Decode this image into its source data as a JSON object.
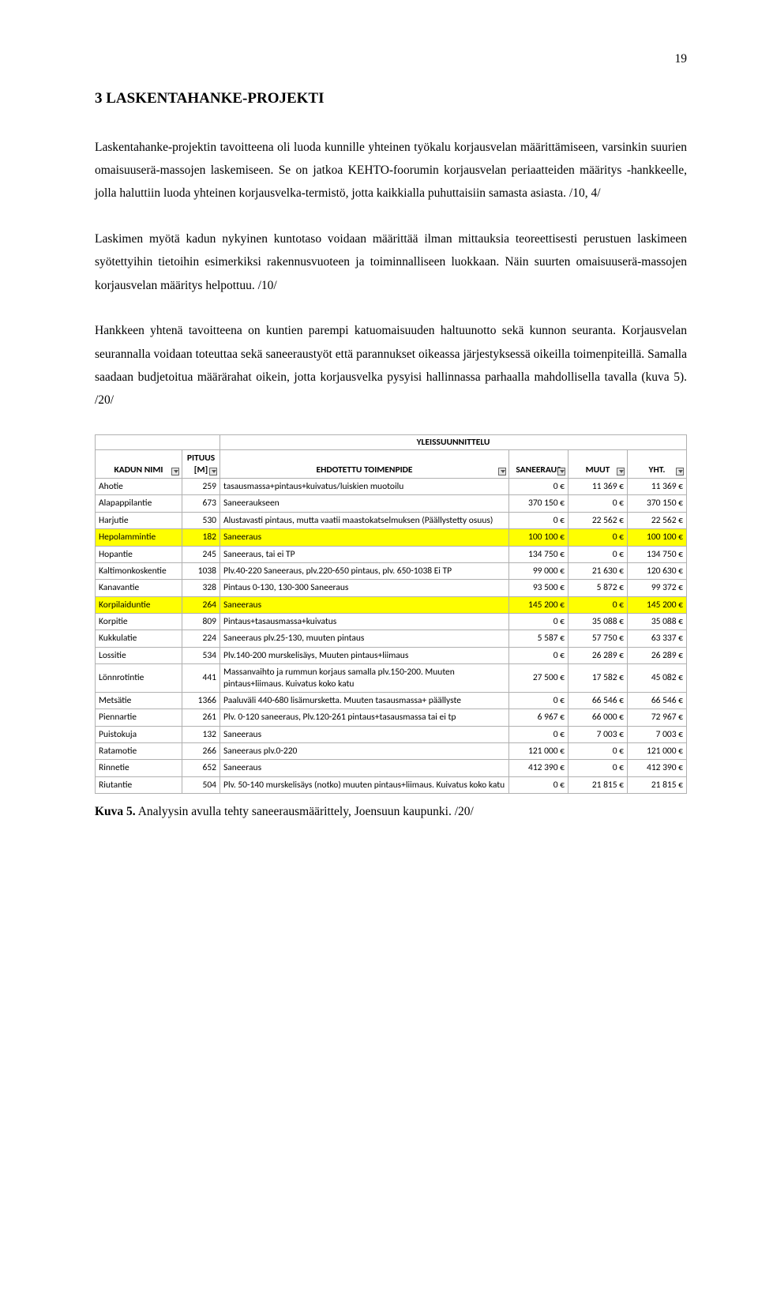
{
  "pageNumber": "19",
  "heading": "3   LASKENTAHANKE-PROJEKTI",
  "paragraphs": [
    "Laskentahanke-projektin tavoitteena oli luoda kunnille yhteinen työkalu korjausvelan määrittämiseen, varsinkin suurien omaisuuserä-massojen laskemiseen. Se on jatkoa KEHTO-foorumin korjausvelan periaatteiden määritys -hankkeelle, jolla haluttiin luoda yhteinen korjausvelka-termistö, jotta kaikkialla puhuttaisiin samasta asiasta. /10, 4/",
    "Laskimen myötä kadun nykyinen kuntotaso voidaan määrittää ilman mittauksia teoreettisesti perustuen laskimeen syötettyihin tietoihin esimerkiksi rakennusvuoteen ja toiminnalliseen luokkaan. Näin suurten omaisuuserä-massojen korjausvelan määritys helpottuu. /10/",
    "Hankkeen yhtenä tavoitteena on kuntien parempi katuomaisuuden haltuunotto sekä kunnon seuranta. Korjausvelan seurannalla voidaan toteuttaa sekä saneeraustyöt että parannukset oikeassa järjestyksessä oikeilla toimenpiteillä. Samalla saadaan budjetoitua määrärahat oikein, jotta korjausvelka pysyisi hallinnassa parhaalla mahdollisella tavalla (kuva 5).  /20/"
  ],
  "table": {
    "superHeaderRight": "YLEISSUUNNITTELU",
    "headers": {
      "name": "KADUN NIMI",
      "lengthLabel": "PITUUS",
      "lengthUnit": "[M]",
      "action": "EHDOTETTU TOIMENPIDE",
      "san": "SANEERAUS",
      "muut": "MUUT",
      "yht": "YHT."
    },
    "rows": [
      {
        "name": "Ahotie",
        "len": "259",
        "action": "tasausmassa+pintaus+kuivatus/luiskien muotoilu",
        "san": "0 €",
        "muut": "11 369 €",
        "yht": "11 369 €",
        "hl": false
      },
      {
        "name": "Alapappilantie",
        "len": "673",
        "action": "Saneeraukseen",
        "san": "370 150 €",
        "muut": "0 €",
        "yht": "370 150 €",
        "hl": false
      },
      {
        "name": "Harjutie",
        "len": "530",
        "action": "Alustavasti pintaus, mutta vaatii maastokatselmuksen (Päällystetty osuus)",
        "san": "0 €",
        "muut": "22 562 €",
        "yht": "22 562 €",
        "hl": false
      },
      {
        "name": "Hepolammintie",
        "len": "182",
        "action": "Saneeraus",
        "san": "100 100 €",
        "muut": "0 €",
        "yht": "100 100 €",
        "hl": true
      },
      {
        "name": "Hopantie",
        "len": "245",
        "action": "Saneeraus, tai ei TP",
        "san": "134 750 €",
        "muut": "0 €",
        "yht": "134 750 €",
        "hl": false
      },
      {
        "name": "Kaltimonkoskentie",
        "len": "1038",
        "action": "Plv.40-220 Saneeraus, plv.220-650 pintaus, plv. 650-1038 Ei TP",
        "san": "99 000 €",
        "muut": "21 630 €",
        "yht": "120 630 €",
        "hl": false
      },
      {
        "name": "Kanavantie",
        "len": "328",
        "action": "Pintaus 0-130, 130-300 Saneeraus",
        "san": "93 500 €",
        "muut": "5 872 €",
        "yht": "99 372 €",
        "hl": false
      },
      {
        "name": "Korpilaiduntie",
        "len": "264",
        "action": "Saneeraus",
        "san": "145 200 €",
        "muut": "0 €",
        "yht": "145 200 €",
        "hl": true
      },
      {
        "name": "Korpitie",
        "len": "809",
        "action": "Pintaus+tasausmassa+kuivatus",
        "san": "0 €",
        "muut": "35 088 €",
        "yht": "35 088 €",
        "hl": false
      },
      {
        "name": "Kukkulatie",
        "len": "224",
        "action": "Saneeraus plv.25-130, muuten pintaus",
        "san": "5 587 €",
        "muut": "57 750 €",
        "yht": "63 337 €",
        "hl": false
      },
      {
        "name": "Lossitie",
        "len": "534",
        "action": "Plv.140-200 murskelisäys, Muuten pintaus+liimaus",
        "san": "0 €",
        "muut": "26 289 €",
        "yht": "26 289 €",
        "hl": false
      },
      {
        "name": "Lönnrotintie",
        "len": "441",
        "action": "Massanvaihto ja rummun korjaus samalla plv.150-200. Muuten pintaus+liimaus. Kuivatus koko katu",
        "san": "27 500 €",
        "muut": "17 582 €",
        "yht": "45 082 €",
        "hl": false
      },
      {
        "name": "Metsätie",
        "len": "1366",
        "action": "Paaluväli 440-680 lisämursketta. Muuten tasausmassa+ päällyste",
        "san": "0 €",
        "muut": "66 546 €",
        "yht": "66 546 €",
        "hl": false
      },
      {
        "name": "Piennartie",
        "len": "261",
        "action": "Plv. 0-120 saneeraus, Plv.120-261 pintaus+tasausmassa tai ei tp",
        "san": "6 967 €",
        "muut": "66 000 €",
        "yht": "72 967 €",
        "hl": false
      },
      {
        "name": "Puistokuja",
        "len": "132",
        "action": "Saneeraus",
        "san": "0 €",
        "muut": "7 003 €",
        "yht": "7 003 €",
        "hl": false
      },
      {
        "name": "Ratamotie",
        "len": "266",
        "action": "Saneeraus plv.0-220",
        "san": "121 000 €",
        "muut": "0 €",
        "yht": "121 000 €",
        "hl": false
      },
      {
        "name": "Rinnetie",
        "len": "652",
        "action": "Saneeraus",
        "san": "412 390 €",
        "muut": "0 €",
        "yht": "412 390 €",
        "hl": false
      },
      {
        "name": "Riutantie",
        "len": "504",
        "action": "Plv. 50-140 murskelisäys (notko) muuten pintaus+liimaus. Kuivatus koko katu",
        "san": "0 €",
        "muut": "21 815 €",
        "yht": "21 815 €",
        "hl": false
      }
    ]
  },
  "caption": {
    "label": "Kuva 5.",
    "text": " Analyysin avulla tehty saneerausmäärittely, Joensuun kaupunki. /20/"
  }
}
